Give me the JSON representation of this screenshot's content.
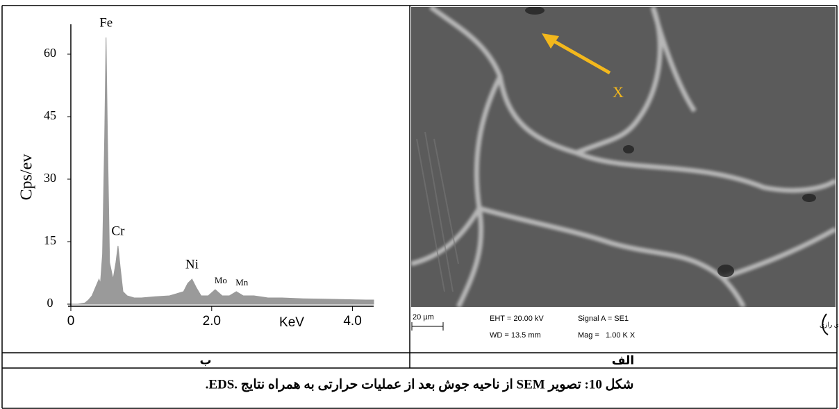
{
  "chart_data": {
    "type": "area",
    "y_label": "Cps/ev",
    "x_label": "KeV",
    "color": "#9a9a9a",
    "x": [
      0,
      0.1,
      0.2,
      0.25,
      0.3,
      0.35,
      0.4,
      0.42,
      0.45,
      0.48,
      0.5,
      0.52,
      0.55,
      0.6,
      0.64,
      0.67,
      0.7,
      0.74,
      0.8,
      0.9,
      1.0,
      1.2,
      1.4,
      1.6,
      1.66,
      1.72,
      1.78,
      1.85,
      1.95,
      2.05,
      2.15,
      2.25,
      2.35,
      2.45,
      2.6,
      2.8,
      3.0,
      3.3,
      3.6,
      3.9,
      4.2,
      4.3
    ],
    "values": [
      0,
      0,
      0.3,
      1,
      2,
      4,
      6,
      5,
      12,
      40,
      64,
      40,
      10,
      6,
      10,
      14,
      9,
      3,
      2,
      1.5,
      1.5,
      1.8,
      2,
      3,
      5,
      6,
      4,
      2,
      2,
      3.5,
      2,
      2,
      3,
      2,
      2,
      1.5,
      1.5,
      1.3,
      1.2,
      1.1,
      1,
      1
    ],
    "xlim": [
      0,
      4.3
    ],
    "ylim": [
      0,
      68
    ],
    "xticks": [
      0,
      {
        "value": 2,
        "label": "2.0"
      },
      {
        "value": 4,
        "label": "4.0"
      }
    ],
    "yticks": [
      0,
      15,
      30,
      45,
      60
    ],
    "annotations": [
      {
        "text": "Fe",
        "x": 0.5
      },
      {
        "text": "Cr",
        "x": 0.67
      },
      {
        "text": "Ni",
        "x": 1.72
      },
      {
        "text": "Mo",
        "x": 2.05
      },
      {
        "text": "Mn",
        "x": 2.35
      }
    ]
  },
  "sem_image": {
    "marker_label": "X",
    "scale_bar": "20 µm",
    "eht": "EHT = 20.00 kV",
    "wd": "WD = 13.5 mm",
    "signal": "Signal A = SE1",
    "mag": "Mag =   1.00 K X",
    "logo": "بنیاد علوم کاربردی رازی"
  },
  "table": {
    "labels": [
      "ب",
      "الف"
    ]
  },
  "caption": "شکل 10: تصویر SEM از ناحیه جوش بعد از عملیات حرارتی به همراه نتایج .EDS."
}
